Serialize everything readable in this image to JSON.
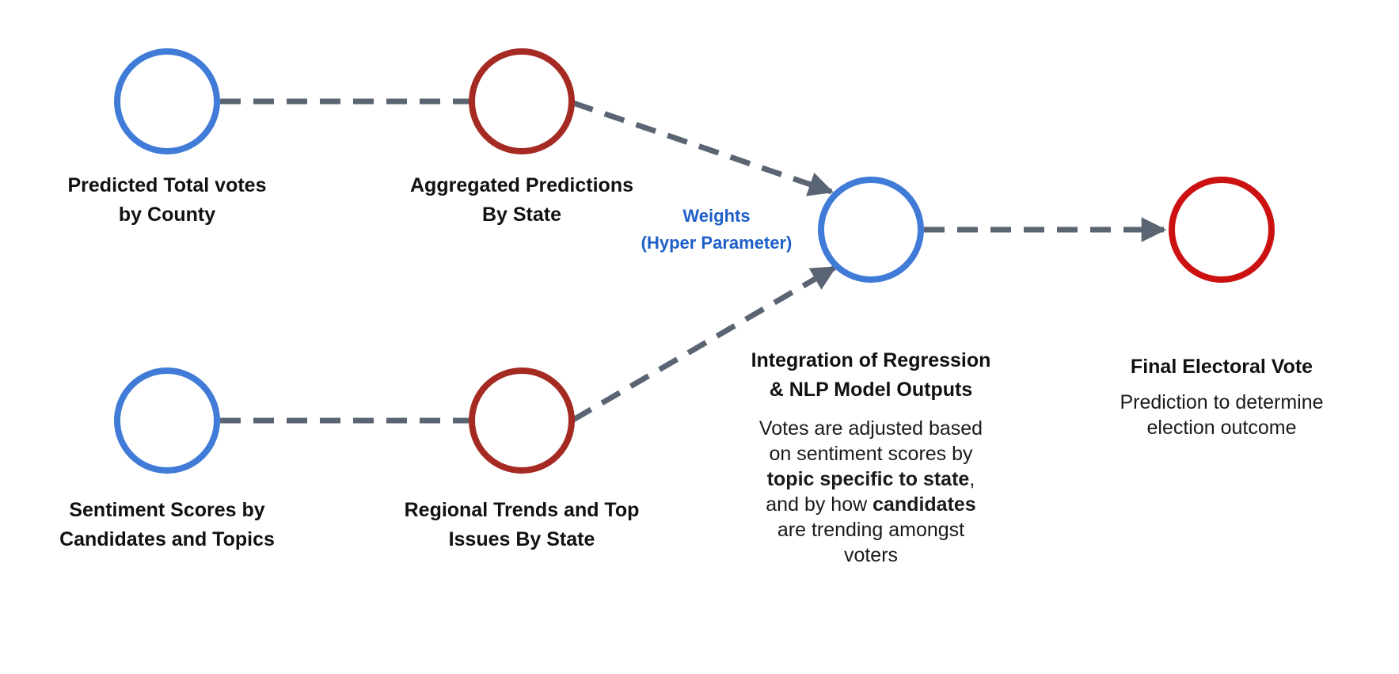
{
  "colors": {
    "blue_node": "#3f7bd7",
    "dark_red_node": "#a52a22",
    "red_node": "#cc1111",
    "arrow": "#5a6472",
    "weights_text": "#1f5fc9"
  },
  "nodes": {
    "county_votes": {
      "label_lines": [
        "Predicted Total votes",
        "by County"
      ]
    },
    "aggregated": {
      "label_lines": [
        "Aggregated Predictions",
        "By State"
      ]
    },
    "sentiment": {
      "label_lines": [
        "Sentiment Scores by",
        "Candidates and Topics"
      ]
    },
    "regional": {
      "label_lines": [
        "Regional Trends and Top",
        "Issues By State"
      ]
    },
    "integration": {
      "label_lines": [
        "Integration of Regression",
        "& NLP Model Outputs"
      ],
      "description": {
        "line1": "Votes are adjusted based",
        "line2": "on sentiment scores by",
        "line3_bold": "topic specific to state",
        "line3_rest": ",",
        "line4_pre": "and by how ",
        "line4_bold": "candidates",
        "line5": "are trending amongst",
        "line6": "voters"
      }
    },
    "final": {
      "label": "Final Electoral Vote",
      "description_lines": [
        "Prediction to determine",
        "election outcome"
      ]
    }
  },
  "weights_label": [
    "Weights",
    "(Hyper Parameter)"
  ]
}
